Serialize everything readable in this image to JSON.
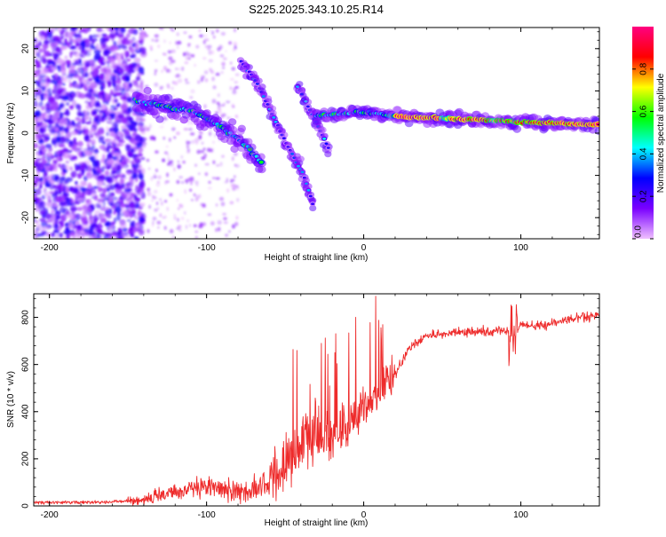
{
  "figure_title": "S225.2025.343.10.25.R14",
  "chart_data": [
    {
      "type": "heatmap",
      "title": "S225.2025.343.10.25.R14",
      "xlabel": "Height of straight line (km)",
      "ylabel": "Frequency (Hz)",
      "xlim": [
        -210,
        150
      ],
      "ylim": [
        -25,
        25
      ],
      "xticks": [
        -200,
        -100,
        0,
        100
      ],
      "yticks": [
        -20,
        -10,
        0,
        10,
        20
      ],
      "colorbar": {
        "label": "Normalized spectral amplitude",
        "range": [
          0,
          1
        ],
        "ticks": [
          0.0,
          0.2,
          0.4,
          0.6,
          0.8
        ],
        "tick_labels": [
          "0.0",
          "0.2",
          "0.4",
          "0.6",
          "0.8"
        ],
        "colormap_stops": [
          "#f0c0ff",
          "#7a00ff",
          "#0000ff",
          "#00ffff",
          "#00ff00",
          "#ffff00",
          "#ff0000",
          "#ff0080"
        ]
      },
      "features": [
        {
          "name": "main-tone",
          "points": [
            [
              -145,
              8
            ],
            [
              -130,
              6.5
            ],
            [
              -110,
              5
            ],
            [
              -95,
              2.5
            ],
            [
              -85,
              0
            ],
            [
              -75,
              -3
            ],
            [
              -65,
              -7
            ]
          ]
        },
        {
          "name": "secondary-branch",
          "points": [
            [
              -78,
              17
            ],
            [
              -68,
              12
            ],
            [
              -60,
              6
            ],
            [
              -50,
              -2
            ],
            [
              -38,
              -10
            ],
            [
              -32,
              -17
            ]
          ]
        },
        {
          "name": "third-branch",
          "points": [
            [
              -42,
              11
            ],
            [
              -35,
              6
            ],
            [
              -28,
              1
            ],
            [
              -22,
              -4
            ]
          ]
        },
        {
          "name": "doppler-tone",
          "points": [
            [
              -30,
              4
            ],
            [
              -15,
              4.5
            ],
            [
              0,
              5
            ],
            [
              20,
              4
            ],
            [
              50,
              3.5
            ],
            [
              80,
              3
            ],
            [
              110,
              2.5
            ],
            [
              150,
              2
            ]
          ]
        }
      ]
    },
    {
      "type": "line",
      "xlabel": "Height of straight line (km)",
      "ylabel": "SNR (10 * v/v)",
      "xlim": [
        -210,
        150
      ],
      "ylim": [
        0,
        900
      ],
      "xticks": [
        -200,
        -100,
        0,
        100
      ],
      "yticks": [
        0,
        200,
        400,
        600,
        800
      ],
      "series": [
        {
          "name": "SNR",
          "color": "#ee2b2b",
          "x": [
            -210,
            -180,
            -150,
            -130,
            -110,
            -95,
            -80,
            -70,
            -60,
            -50,
            -40,
            -30,
            -20,
            -10,
            -5,
            0,
            10,
            15,
            20,
            25,
            30,
            40,
            50,
            60,
            70,
            80,
            90,
            95,
            100,
            110,
            120,
            130,
            140,
            150
          ],
          "y": [
            15,
            15,
            20,
            40,
            70,
            80,
            60,
            70,
            100,
            180,
            260,
            300,
            300,
            340,
            380,
            420,
            470,
            520,
            560,
            620,
            680,
            720,
            730,
            735,
            740,
            740,
            745,
            720,
            770,
            760,
            775,
            790,
            800,
            810
          ]
        }
      ]
    }
  ]
}
